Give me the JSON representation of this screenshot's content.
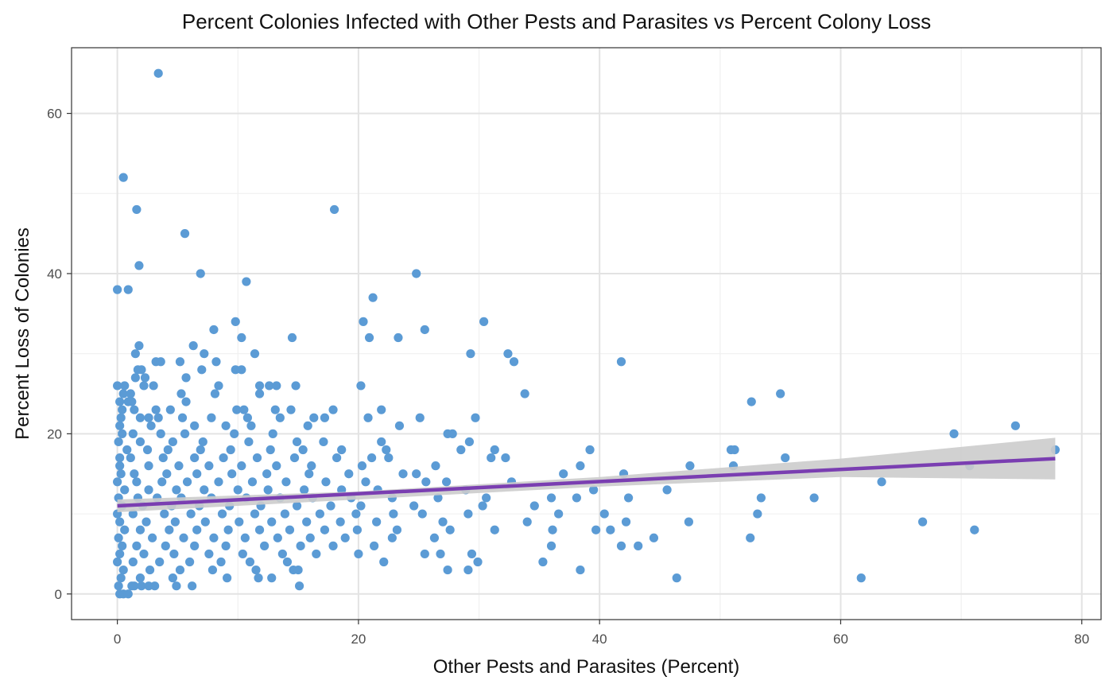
{
  "chart_data": {
    "type": "scatter",
    "title": "Percent Colonies Infected with Other Pests and Parasites vs Percent Colony Loss",
    "xlabel": "Other Pests and Parasites (Percent)",
    "ylabel": "Percent Loss of Colonies",
    "xlim": [
      -3.8,
      81.6
    ],
    "ylim": [
      -3.2,
      68.2
    ],
    "x_ticks": [
      0,
      20,
      40,
      60,
      80
    ],
    "y_ticks": [
      0,
      20,
      40,
      60
    ],
    "grid": true,
    "point_color": "#5b9bd5",
    "fit": {
      "method": "linear",
      "color": "#7a3eb1",
      "band_color": "#cccccc",
      "line": [
        [
          0,
          11.0
        ],
        [
          77.8,
          16.9
        ]
      ],
      "band_upper": [
        [
          0,
          11.8
        ],
        [
          20,
          12.8
        ],
        [
          40,
          14.6
        ],
        [
          60,
          16.9
        ],
        [
          77.8,
          19.5
        ]
      ],
      "band_lower": [
        [
          0,
          10.2
        ],
        [
          20,
          11.8
        ],
        [
          40,
          13.4
        ],
        [
          60,
          14.6
        ],
        [
          77.8,
          14.3
        ]
      ]
    },
    "points": [
      [
        3.4,
        65
      ],
      [
        0.5,
        52
      ],
      [
        1.6,
        48
      ],
      [
        1.8,
        41
      ],
      [
        5.6,
        45
      ],
      [
        6.9,
        40
      ],
      [
        0,
        38
      ],
      [
        0.9,
        38
      ],
      [
        10.7,
        39
      ],
      [
        18,
        48
      ],
      [
        24.8,
        40
      ],
      [
        21.2,
        37
      ],
      [
        20.4,
        34
      ],
      [
        30.4,
        34
      ],
      [
        9.8,
        34
      ],
      [
        8.0,
        33
      ],
      [
        25.5,
        33
      ],
      [
        23.3,
        32
      ],
      [
        20.9,
        32
      ],
      [
        14.5,
        32
      ],
      [
        10.3,
        32
      ],
      [
        6.3,
        31
      ],
      [
        1.8,
        31
      ],
      [
        1.5,
        30
      ],
      [
        7.2,
        30
      ],
      [
        11.4,
        30
      ],
      [
        29.3,
        30
      ],
      [
        32.4,
        30
      ],
      [
        3.2,
        29
      ],
      [
        3.6,
        29
      ],
      [
        5.2,
        29
      ],
      [
        8.2,
        29
      ],
      [
        32.9,
        29
      ],
      [
        41.8,
        29
      ],
      [
        2.0,
        28
      ],
      [
        1.7,
        28
      ],
      [
        7.0,
        28
      ],
      [
        9.8,
        28
      ],
      [
        10.3,
        28
      ],
      [
        1.5,
        27
      ],
      [
        2.3,
        27
      ],
      [
        5.7,
        27
      ],
      [
        0,
        26
      ],
      [
        0.6,
        26
      ],
      [
        2.2,
        26
      ],
      [
        3.0,
        26
      ],
      [
        8.4,
        26
      ],
      [
        11.8,
        26
      ],
      [
        12.6,
        26
      ],
      [
        13.2,
        26
      ],
      [
        14.8,
        26
      ],
      [
        20.2,
        26
      ],
      [
        0.5,
        25
      ],
      [
        1.1,
        25
      ],
      [
        5.3,
        25
      ],
      [
        8.1,
        25
      ],
      [
        11.8,
        25
      ],
      [
        33.8,
        25
      ],
      [
        55.0,
        25
      ],
      [
        0.2,
        24
      ],
      [
        0.9,
        24
      ],
      [
        1.2,
        24
      ],
      [
        5.7,
        24
      ],
      [
        52.6,
        24
      ],
      [
        0.4,
        23
      ],
      [
        1.4,
        23
      ],
      [
        3.2,
        23
      ],
      [
        4.4,
        23
      ],
      [
        9.9,
        23
      ],
      [
        10.5,
        23
      ],
      [
        13.1,
        23
      ],
      [
        14.4,
        23
      ],
      [
        17.9,
        23
      ],
      [
        21.9,
        23
      ],
      [
        0.3,
        22
      ],
      [
        1.9,
        22
      ],
      [
        2.6,
        22
      ],
      [
        3.4,
        22
      ],
      [
        5.4,
        22
      ],
      [
        7.8,
        22
      ],
      [
        10.8,
        22
      ],
      [
        13.5,
        22
      ],
      [
        16.3,
        22
      ],
      [
        17.2,
        22
      ],
      [
        20.8,
        22
      ],
      [
        25.1,
        22
      ],
      [
        29.7,
        22
      ],
      [
        0.2,
        21
      ],
      [
        2.8,
        21
      ],
      [
        6.4,
        21
      ],
      [
        9.0,
        21
      ],
      [
        11.1,
        21
      ],
      [
        15.8,
        21
      ],
      [
        23.4,
        21
      ],
      [
        0.4,
        20
      ],
      [
        1.3,
        20
      ],
      [
        3.6,
        20
      ],
      [
        5.6,
        20
      ],
      [
        9.7,
        20
      ],
      [
        12.9,
        20
      ],
      [
        27.4,
        20
      ],
      [
        27.8,
        20
      ],
      [
        69.4,
        20
      ],
      [
        74.5,
        21
      ],
      [
        0.1,
        19
      ],
      [
        1.9,
        19
      ],
      [
        4.6,
        19
      ],
      [
        7.1,
        19
      ],
      [
        10.9,
        19
      ],
      [
        14.9,
        19
      ],
      [
        17.1,
        19
      ],
      [
        21.9,
        19
      ],
      [
        29.2,
        19
      ],
      [
        0.8,
        18
      ],
      [
        2.5,
        18
      ],
      [
        4.2,
        18
      ],
      [
        6.9,
        18
      ],
      [
        9.4,
        18
      ],
      [
        12.7,
        18
      ],
      [
        15.4,
        18
      ],
      [
        18.6,
        18
      ],
      [
        22.3,
        18
      ],
      [
        28.5,
        18
      ],
      [
        31.3,
        18
      ],
      [
        39.2,
        18
      ],
      [
        50.9,
        18
      ],
      [
        51.2,
        18
      ],
      [
        77.8,
        18
      ],
      [
        0.2,
        17
      ],
      [
        1.1,
        17
      ],
      [
        3.8,
        17
      ],
      [
        6.4,
        17
      ],
      [
        8.8,
        17
      ],
      [
        11.6,
        17
      ],
      [
        14.7,
        17
      ],
      [
        18.2,
        17
      ],
      [
        21.1,
        17
      ],
      [
        22.5,
        17
      ],
      [
        31.0,
        17
      ],
      [
        32.2,
        17
      ],
      [
        55.4,
        17
      ],
      [
        0.2,
        16
      ],
      [
        2.6,
        16
      ],
      [
        5.1,
        16
      ],
      [
        7.6,
        16
      ],
      [
        10.3,
        16
      ],
      [
        13.2,
        16
      ],
      [
        16.1,
        16
      ],
      [
        20.3,
        16
      ],
      [
        26.4,
        16
      ],
      [
        38.4,
        16
      ],
      [
        47.5,
        16
      ],
      [
        51.1,
        16
      ],
      [
        70.7,
        16
      ],
      [
        0.3,
        15
      ],
      [
        1.4,
        15
      ],
      [
        4.1,
        15
      ],
      [
        6.6,
        15
      ],
      [
        9.5,
        15
      ],
      [
        12.4,
        15
      ],
      [
        15.9,
        15
      ],
      [
        19.2,
        15
      ],
      [
        23.7,
        15
      ],
      [
        24.8,
        15
      ],
      [
        37.0,
        15
      ],
      [
        42.0,
        15
      ],
      [
        0,
        14
      ],
      [
        1.6,
        14
      ],
      [
        3.7,
        14
      ],
      [
        5.8,
        14
      ],
      [
        8.4,
        14
      ],
      [
        11.2,
        14
      ],
      [
        14.0,
        14
      ],
      [
        17.3,
        14
      ],
      [
        20.6,
        14
      ],
      [
        25.6,
        14
      ],
      [
        27.3,
        14
      ],
      [
        32.7,
        14
      ],
      [
        63.4,
        14
      ],
      [
        0.6,
        13
      ],
      [
        2.6,
        13
      ],
      [
        4.9,
        13
      ],
      [
        7.2,
        13
      ],
      [
        10.0,
        13
      ],
      [
        12.5,
        13
      ],
      [
        15.5,
        13
      ],
      [
        18.6,
        13
      ],
      [
        21.6,
        13
      ],
      [
        28.9,
        13
      ],
      [
        39.5,
        13
      ],
      [
        45.6,
        13
      ],
      [
        0.1,
        12
      ],
      [
        1.7,
        12
      ],
      [
        3.3,
        12
      ],
      [
        5.3,
        12
      ],
      [
        7.8,
        12
      ],
      [
        10.7,
        12
      ],
      [
        13.5,
        12
      ],
      [
        16.2,
        12
      ],
      [
        19.4,
        12
      ],
      [
        22.8,
        12
      ],
      [
        26.6,
        12
      ],
      [
        30.6,
        12
      ],
      [
        36.0,
        12
      ],
      [
        38.1,
        12
      ],
      [
        42.4,
        12
      ],
      [
        53.4,
        12
      ],
      [
        57.8,
        12
      ],
      [
        0.4,
        11
      ],
      [
        2.1,
        11
      ],
      [
        4.5,
        11
      ],
      [
        6.8,
        11
      ],
      [
        9.3,
        11
      ],
      [
        11.9,
        11
      ],
      [
        14.9,
        11
      ],
      [
        17.7,
        11
      ],
      [
        20.2,
        11
      ],
      [
        24.6,
        11
      ],
      [
        30.3,
        11
      ],
      [
        34.6,
        11
      ],
      [
        0,
        10
      ],
      [
        1.3,
        10
      ],
      [
        3.9,
        10
      ],
      [
        6.1,
        10
      ],
      [
        8.7,
        10
      ],
      [
        11.4,
        10
      ],
      [
        13.9,
        10
      ],
      [
        16.8,
        10
      ],
      [
        19.8,
        10
      ],
      [
        22.9,
        10
      ],
      [
        25.3,
        10
      ],
      [
        29.1,
        10
      ],
      [
        36.6,
        10
      ],
      [
        40.4,
        10
      ],
      [
        53.1,
        10
      ],
      [
        0.2,
        9
      ],
      [
        2.4,
        9
      ],
      [
        4.8,
        9
      ],
      [
        7.3,
        9
      ],
      [
        10.1,
        9
      ],
      [
        12.8,
        9
      ],
      [
        15.7,
        9
      ],
      [
        18.5,
        9
      ],
      [
        21.5,
        9
      ],
      [
        27.0,
        9
      ],
      [
        34.0,
        9
      ],
      [
        42.2,
        9
      ],
      [
        47.4,
        9
      ],
      [
        66.8,
        9
      ],
      [
        0.6,
        8
      ],
      [
        1.9,
        8
      ],
      [
        4.3,
        8
      ],
      [
        6.6,
        8
      ],
      [
        9.2,
        8
      ],
      [
        11.8,
        8
      ],
      [
        14.3,
        8
      ],
      [
        17.2,
        8
      ],
      [
        19.9,
        8
      ],
      [
        23.2,
        8
      ],
      [
        27.6,
        8
      ],
      [
        31.3,
        8
      ],
      [
        36.1,
        8
      ],
      [
        39.7,
        8
      ],
      [
        40.9,
        8
      ],
      [
        71.1,
        8
      ],
      [
        0.1,
        7
      ],
      [
        2.9,
        7
      ],
      [
        5.5,
        7
      ],
      [
        8.0,
        7
      ],
      [
        10.6,
        7
      ],
      [
        13.3,
        7
      ],
      [
        16.0,
        7
      ],
      [
        18.9,
        7
      ],
      [
        22.8,
        7
      ],
      [
        26.3,
        7
      ],
      [
        44.5,
        7
      ],
      [
        52.5,
        7
      ],
      [
        0.4,
        6
      ],
      [
        1.6,
        6
      ],
      [
        4.0,
        6
      ],
      [
        6.4,
        6
      ],
      [
        9.0,
        6
      ],
      [
        12.2,
        6
      ],
      [
        15.2,
        6
      ],
      [
        17.9,
        6
      ],
      [
        21.3,
        6
      ],
      [
        36.0,
        6
      ],
      [
        41.8,
        6
      ],
      [
        43.2,
        6
      ],
      [
        0.2,
        5
      ],
      [
        2.2,
        5
      ],
      [
        4.7,
        5
      ],
      [
        7.6,
        5
      ],
      [
        10.4,
        5
      ],
      [
        13.7,
        5
      ],
      [
        16.5,
        5
      ],
      [
        20.0,
        5
      ],
      [
        25.5,
        5
      ],
      [
        26.8,
        5
      ],
      [
        29.4,
        5
      ],
      [
        0,
        4
      ],
      [
        1.3,
        4
      ],
      [
        3.5,
        4
      ],
      [
        6.0,
        4
      ],
      [
        8.6,
        4
      ],
      [
        11.0,
        4
      ],
      [
        14.1,
        4
      ],
      [
        22.1,
        4
      ],
      [
        29.9,
        4
      ],
      [
        35.3,
        4
      ],
      [
        0.5,
        3
      ],
      [
        2.7,
        3
      ],
      [
        5.2,
        3
      ],
      [
        7.9,
        3
      ],
      [
        11.5,
        3
      ],
      [
        14.6,
        3
      ],
      [
        15.0,
        3
      ],
      [
        27.4,
        3
      ],
      [
        29.1,
        3
      ],
      [
        38.4,
        3
      ],
      [
        0.3,
        2
      ],
      [
        1.9,
        2
      ],
      [
        4.6,
        2
      ],
      [
        9.1,
        2
      ],
      [
        11.7,
        2
      ],
      [
        12.8,
        2
      ],
      [
        46.4,
        2
      ],
      [
        61.7,
        2
      ],
      [
        0.1,
        1
      ],
      [
        1.4,
        1
      ],
      [
        3.1,
        1
      ],
      [
        6.2,
        1
      ],
      [
        15.1,
        1
      ],
      [
        0.2,
        0
      ],
      [
        0.5,
        0
      ],
      [
        0.9,
        0
      ],
      [
        1.2,
        1
      ],
      [
        2.0,
        1
      ],
      [
        2.6,
        1
      ],
      [
        4.9,
        1
      ]
    ]
  }
}
